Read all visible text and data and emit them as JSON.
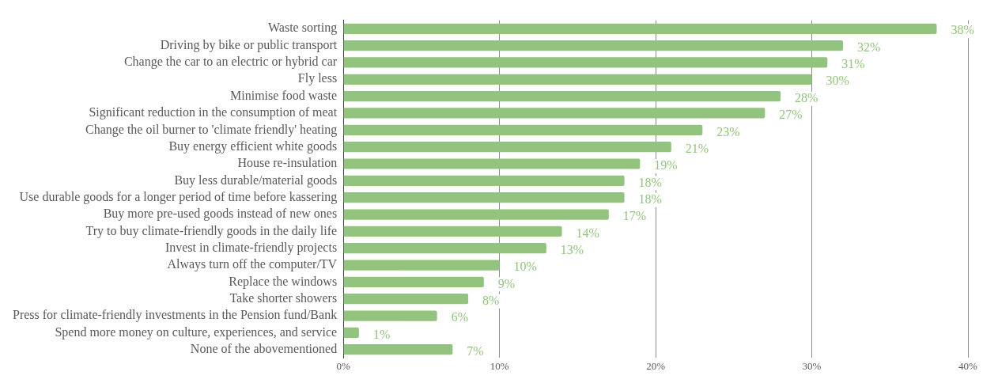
{
  "chart_data": {
    "type": "bar",
    "orientation": "horizontal",
    "categories": [
      "Waste sorting",
      "Driving by bike or public transport",
      "Change the car to an electric or hybrid car",
      "Fly less",
      "Minimise food waste",
      "Significant reduction in the consumption of meat",
      "Change the oil burner to 'climate friendly' heating",
      "Buy energy efficient white goods",
      "House re-insulation",
      "Buy less durable/material goods",
      "Use durable goods for a longer period of time before kassering",
      "Buy more pre-used goods instead of new ones",
      "Try to buy climate-friendly goods in the daily life",
      "Invest in climate-friendly projects",
      "Always turn off the computer/TV",
      "Replace the windows",
      "Take shorter showers",
      "Press for climate-friendly investments in the Pension fund/Bank",
      "Spend more money on culture, experiences, and service",
      "None of the abovementioned"
    ],
    "values": [
      38,
      32,
      31,
      30,
      28,
      27,
      23,
      21,
      19,
      18,
      18,
      17,
      14,
      13,
      10,
      9,
      8,
      6,
      1,
      7
    ],
    "value_labels": [
      "38%",
      "32%",
      "31%",
      "30%",
      "28%",
      "27%",
      "23%",
      "21%",
      "19%",
      "18%",
      "18%",
      "17%",
      "14%",
      "13%",
      "10%",
      "9%",
      "8%",
      "6%",
      "1%",
      "7%"
    ],
    "color": "#93c47d",
    "xlim": [
      0,
      40
    ],
    "xticks": [
      {
        "value": 0,
        "label": "0%"
      },
      {
        "value": 10,
        "label": "10%"
      },
      {
        "value": 20,
        "label": "20%"
      },
      {
        "value": 30,
        "label": "30%"
      },
      {
        "value": 40,
        "label": "40%"
      }
    ],
    "grid": "x",
    "legend": false
  }
}
